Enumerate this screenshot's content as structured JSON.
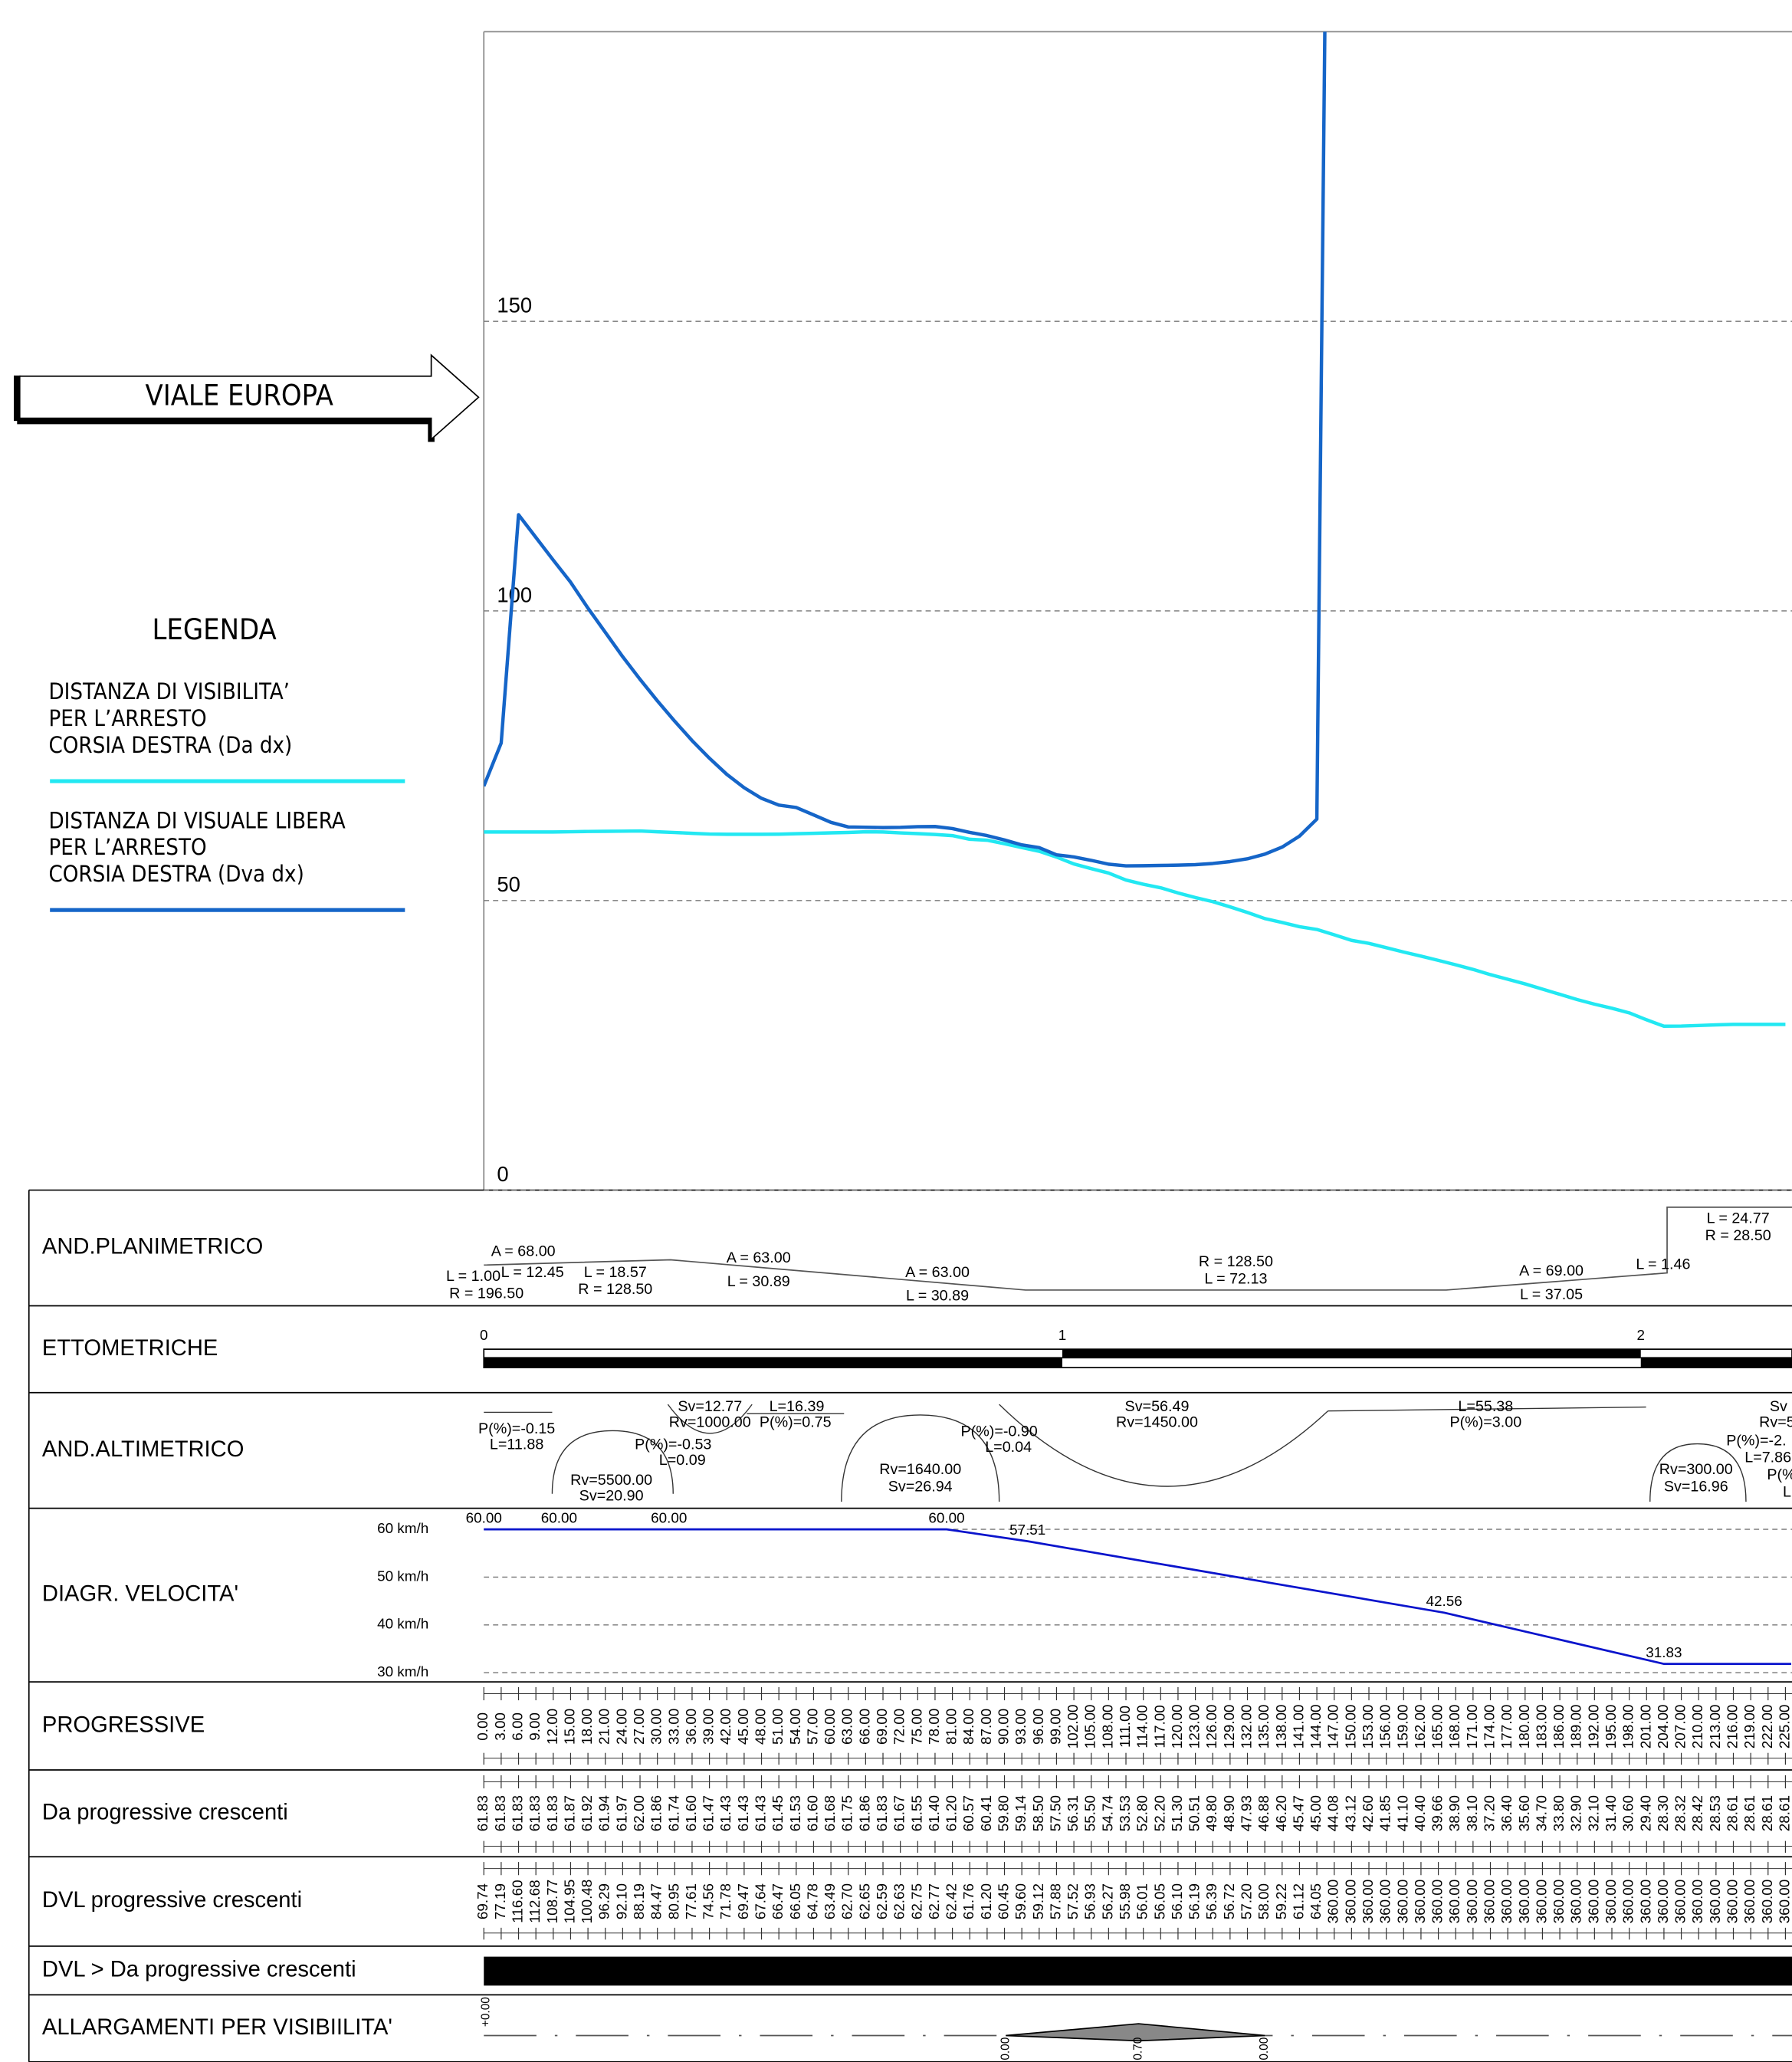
{
  "drawing_title": "VIALE EUROPA",
  "legend": {
    "title": "LEGENDA"
  },
  "chart_data": [
    {
      "type": "line",
      "x": [
        0,
        3,
        6,
        9,
        12,
        15,
        18,
        21,
        24,
        27,
        30,
        33,
        36,
        39,
        42,
        45,
        48,
        51,
        54,
        57,
        60,
        63,
        66,
        69,
        72,
        75,
        78,
        81,
        84,
        87,
        90,
        93,
        96,
        99,
        102,
        105,
        108,
        111,
        114,
        117,
        120,
        123,
        126,
        129,
        132,
        135,
        138,
        141,
        144,
        147,
        150,
        153,
        156,
        159,
        162,
        165,
        168,
        171,
        174,
        177,
        180,
        183,
        186,
        189,
        192,
        195,
        198,
        201,
        204,
        207,
        210,
        213,
        216,
        219,
        222,
        225
      ],
      "xlim": [
        0,
        226
      ],
      "xticks": [
        {
          "value": 0,
          "label": "0.00"
        },
        {
          "value": 3,
          "label": "3.00"
        },
        {
          "value": 6,
          "label": "6.00"
        },
        {
          "value": 9,
          "label": "9.00"
        },
        {
          "value": 12,
          "label": "12.00"
        },
        {
          "value": 15,
          "label": "15.00"
        },
        {
          "value": 18,
          "label": "18.00"
        },
        {
          "value": 21,
          "label": "21.00"
        },
        {
          "value": 24,
          "label": "24.00"
        },
        {
          "value": 27,
          "label": "27.00"
        },
        {
          "value": 30,
          "label": "30.00"
        },
        {
          "value": 33,
          "label": "33.00"
        },
        {
          "value": 36,
          "label": "36.00"
        },
        {
          "value": 39,
          "label": "39.00"
        },
        {
          "value": 42,
          "label": "42.00"
        },
        {
          "value": 45,
          "label": "45.00"
        },
        {
          "value": 48,
          "label": "48.00"
        },
        {
          "value": 51,
          "label": "51.00"
        },
        {
          "value": 54,
          "label": "54.00"
        },
        {
          "value": 57,
          "label": "57.00"
        },
        {
          "value": 60,
          "label": "60.00"
        },
        {
          "value": 63,
          "label": "63.00"
        },
        {
          "value": 66,
          "label": "66.00"
        },
        {
          "value": 69,
          "label": "69.00"
        },
        {
          "value": 72,
          "label": "72.00"
        },
        {
          "value": 75,
          "label": "75.00"
        },
        {
          "value": 78,
          "label": "78.00"
        },
        {
          "value": 81,
          "label": "81.00"
        },
        {
          "value": 84,
          "label": "84.00"
        },
        {
          "value": 87,
          "label": "87.00"
        },
        {
          "value": 90,
          "label": "90.00"
        },
        {
          "value": 93,
          "label": "93.00"
        },
        {
          "value": 96,
          "label": "96.00"
        },
        {
          "value": 99,
          "label": "99.00"
        },
        {
          "value": 102,
          "label": "102.00"
        },
        {
          "value": 105,
          "label": "105.00"
        },
        {
          "value": 108,
          "label": "108.00"
        },
        {
          "value": 111,
          "label": "111.00"
        },
        {
          "value": 114,
          "label": "114.00"
        },
        {
          "value": 117,
          "label": "117.00"
        },
        {
          "value": 120,
          "label": "120.00"
        },
        {
          "value": 123,
          "label": "123.00"
        },
        {
          "value": 126,
          "label": "126.00"
        },
        {
          "value": 129,
          "label": "129.00"
        },
        {
          "value": 132,
          "label": "132.00"
        },
        {
          "value": 135,
          "label": "135.00"
        },
        {
          "value": 138,
          "label": "138.00"
        },
        {
          "value": 141,
          "label": "141.00"
        },
        {
          "value": 144,
          "label": "144.00"
        },
        {
          "value": 147,
          "label": "147.00"
        },
        {
          "value": 150,
          "label": "150.00"
        },
        {
          "value": 153,
          "label": "153.00"
        },
        {
          "value": 156,
          "label": "156.00"
        },
        {
          "value": 159,
          "label": "159.00"
        },
        {
          "value": 162,
          "label": "162.00"
        },
        {
          "value": 165,
          "label": "165.00"
        },
        {
          "value": 168,
          "label": "168.00"
        },
        {
          "value": 171,
          "label": "171.00"
        },
        {
          "value": 174,
          "label": "174.00"
        },
        {
          "value": 177,
          "label": "177.00"
        },
        {
          "value": 180,
          "label": "180.00"
        },
        {
          "value": 183,
          "label": "183.00"
        },
        {
          "value": 186,
          "label": "186.00"
        },
        {
          "value": 189,
          "label": "189.00"
        },
        {
          "value": 192,
          "label": "192.00"
        },
        {
          "value": 195,
          "label": "195.00"
        },
        {
          "value": 198,
          "label": "198.00"
        },
        {
          "value": 201,
          "label": "201.00"
        },
        {
          "value": 204,
          "label": "204.00"
        },
        {
          "value": 207,
          "label": "207.00"
        },
        {
          "value": 210,
          "label": "210.00"
        },
        {
          "value": 213,
          "label": "213.00"
        },
        {
          "value": 216,
          "label": "216.00"
        },
        {
          "value": 219,
          "label": "219.00"
        },
        {
          "value": 222,
          "label": "222.00"
        },
        {
          "value": 225,
          "label": "225.00"
        }
      ],
      "ylim": [
        0,
        200
      ],
      "yticks": [
        0,
        50,
        100,
        150
      ],
      "grid": true,
      "series": [
        {
          "name": "DISTANZA DI VISIBILITA’\nPER L’ARRESTO\nCORSIA DESTRA (Da dx)",
          "color": "#22e8f2",
          "values": [
            61.83,
            61.83,
            61.83,
            61.83,
            61.83,
            61.87,
            61.92,
            61.94,
            61.97,
            62.0,
            61.86,
            61.74,
            61.6,
            61.47,
            61.43,
            61.43,
            61.43,
            61.45,
            61.53,
            61.6,
            61.68,
            61.75,
            61.86,
            61.83,
            61.67,
            61.55,
            61.4,
            61.2,
            60.57,
            60.41,
            59.8,
            59.14,
            58.5,
            57.5,
            56.31,
            55.5,
            54.74,
            53.53,
            52.8,
            52.2,
            51.3,
            50.51,
            49.8,
            48.9,
            47.93,
            46.88,
            46.2,
            45.47,
            45.0,
            44.08,
            43.12,
            42.6,
            41.85,
            41.1,
            40.4,
            39.66,
            38.9,
            38.1,
            37.2,
            36.4,
            35.6,
            34.7,
            33.8,
            32.9,
            32.1,
            31.4,
            30.6,
            29.4,
            28.3,
            28.32,
            28.42,
            28.53,
            28.61,
            28.61,
            28.61,
            28.61
          ],
          "value_labels": [
            "61.83",
            "61.83",
            "61.83",
            "61.83",
            "61.83",
            "61.87",
            "61.92",
            "61.94",
            "61.97",
            "62.00",
            "61.86",
            "61.74",
            "61.60",
            "61.47",
            "61.43",
            "61.43",
            "61.43",
            "61.45",
            "61.53",
            "61.60",
            "61.68",
            "61.75",
            "61.86",
            "61.83",
            "61.67",
            "61.55",
            "61.40",
            "61.20",
            "60.57",
            "60.41",
            "59.80",
            "59.14",
            "58.50",
            "57.50",
            "56.31",
            "55.50",
            "54.74",
            "53.53",
            "52.80",
            "52.20",
            "51.30",
            "50.51",
            "49.80",
            "48.90",
            "47.93",
            "46.88",
            "46.20",
            "45.47",
            "45.00",
            "44.08",
            "43.12",
            "42.60",
            "41.85",
            "41.10",
            "40.40",
            "39.66",
            "38.90",
            "38.10",
            "37.20",
            "36.40",
            "35.60",
            "34.70",
            "33.80",
            "32.90",
            "32.10",
            "31.40",
            "30.60",
            "29.40",
            "28.30",
            "28.32",
            "28.42",
            "28.53",
            "28.61",
            "28.61",
            "28.61",
            "28.61"
          ]
        },
        {
          "name": "DISTANZA DI VISUALE LIBERA\nPER L’ARRESTO\nCORSIA DESTRA (Dva dx)",
          "color": "#1565c8",
          "values": [
            69.74,
            77.19,
            116.6,
            112.68,
            108.77,
            104.95,
            100.48,
            96.29,
            92.1,
            88.19,
            84.47,
            80.95,
            77.61,
            74.56,
            71.78,
            69.47,
            67.64,
            66.47,
            66.05,
            64.78,
            63.49,
            62.7,
            62.65,
            62.59,
            62.63,
            62.75,
            62.77,
            62.42,
            61.76,
            61.2,
            60.45,
            59.6,
            59.12,
            57.88,
            57.52,
            56.93,
            56.27,
            55.98,
            56.01,
            56.05,
            56.1,
            56.19,
            56.39,
            56.72,
            57.2,
            58.0,
            59.22,
            61.12,
            64.05,
            360,
            360,
            360,
            360,
            360,
            360,
            360,
            360,
            360,
            360,
            360,
            360,
            360,
            360,
            360,
            360,
            360,
            360,
            360,
            360,
            360,
            360,
            360,
            360,
            360,
            360,
            360
          ],
          "value_labels": [
            "69.74",
            "77.19",
            "116.60",
            "112.68",
            "108.77",
            "104.95",
            "100.48",
            "96.29",
            "92.10",
            "88.19",
            "84.47",
            "80.95",
            "77.61",
            "74.56",
            "71.78",
            "69.47",
            "67.64",
            "66.47",
            "66.05",
            "64.78",
            "63.49",
            "62.70",
            "62.65",
            "62.59",
            "62.63",
            "62.75",
            "62.77",
            "62.42",
            "61.76",
            "61.20",
            "60.45",
            "59.60",
            "59.12",
            "57.88",
            "57.52",
            "56.93",
            "56.27",
            "55.98",
            "56.01",
            "56.05",
            "56.10",
            "56.19",
            "56.39",
            "56.72",
            "57.20",
            "58.00",
            "59.22",
            "61.12",
            "64.05",
            "360.00",
            "360.00",
            "360.00",
            "360.00",
            "360.00",
            "360.00",
            "360.00",
            "360.00",
            "360.00",
            "360.00",
            "360.00",
            "360.00",
            "360.00",
            "360.00",
            "360.00",
            "360.00",
            "360.00",
            "360.00",
            "360.00",
            "360.00",
            "360.00",
            "360.00",
            "360.00",
            "360.00",
            "360.00",
            "360.00",
            "360.00"
          ]
        }
      ]
    },
    {
      "type": "line",
      "x": [
        0,
        13,
        32,
        80,
        94,
        166,
        204,
        226
      ],
      "xlim": [
        0,
        226
      ],
      "ylim": [
        30,
        60
      ],
      "yticks": [
        {
          "value": 60,
          "label": "60 km/h"
        },
        {
          "value": 50,
          "label": "50 km/h"
        },
        {
          "value": 40,
          "label": "40 km/h"
        },
        {
          "value": 30,
          "label": "30 km/h"
        }
      ],
      "grid": true,
      "series": [
        {
          "color": "#0a14cc",
          "values": [
            60,
            60,
            60,
            60,
            57.51,
            42.56,
            31.83,
            31.83
          ],
          "value_labels": [
            "60.00",
            "60.00",
            "60.00",
            "60.00",
            "57.51",
            "42.56",
            "31.83",
            null
          ]
        }
      ]
    }
  ],
  "profile_table": {
    "rows": [
      "AND.PLANIMETRICO",
      "ETTOMETRICHE",
      "AND.ALTIMETRICO",
      "DIAGR. VELOCITA'",
      "PROGRESSIVE",
      "Da progressive crescenti",
      "DVL progressive crescenti",
      "DVL > Da progressive crescenti",
      "ALLARGAMENTI PER VISIBIILITA'"
    ]
  },
  "planimetrico": [
    "A = 68.00",
    "L = 1.00",
    "L = 12.45",
    "R = 196.50",
    "L = 18.57",
    "R = 128.50",
    "A = 63.00",
    "L = 30.89",
    "A = 63.00",
    "L = 30.89",
    "R = 128.50",
    "L = 72.13",
    "A = 69.00",
    "L = 37.05",
    "L = 1.46",
    "L = 24.77",
    "R = 28.50"
  ],
  "ettometriche": [
    "0",
    "1",
    "2"
  ],
  "altimetrico": [
    "P(%)=-0.15",
    "L=11.88",
    "Rv=5500.00",
    "Sv=20.90",
    "P(%)=-0.53",
    "L=0.09",
    "Sv=12.77",
    "Rv=1000.00",
    "L=16.39",
    "P(%)=0.75",
    "Rv=1640.00",
    "Sv=26.94",
    "P(%)=-0.90",
    "L=0.04",
    "Sv=56.49",
    "Rv=1450.00",
    "L=55.38",
    "P(%)=3.00",
    "Rv=300.00",
    "Sv=16.96",
    "Sv",
    "Rv=5",
    "P(%)=-2.",
    "L=7.86",
    "P(%",
    "L"
  ],
  "allargamenti": [
    "+0.00",
    "0.00",
    "0.70",
    "0.00"
  ]
}
